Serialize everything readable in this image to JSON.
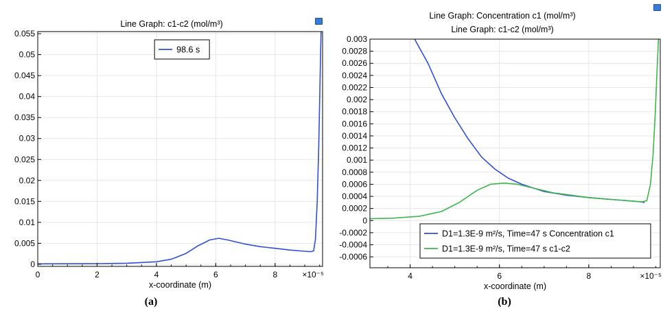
{
  "chart_data": [
    {
      "id": "a",
      "type": "line",
      "title_lines": [
        "Line Graph: c1-c2 (mol/m³)"
      ],
      "xlabel": "x-coordinate (m)",
      "x_multiplier_label": "×10⁻⁵",
      "xlim": [
        0,
        9.6
      ],
      "ylim": [
        -0.0005,
        0.0555
      ],
      "x_ticks": [
        0,
        2,
        4,
        6,
        8
      ],
      "y_ticks": [
        0,
        0.005,
        0.01,
        0.015,
        0.02,
        0.025,
        0.03,
        0.035,
        0.04,
        0.045,
        0.05,
        0.055
      ],
      "y_tick_labels": [
        "0",
        "0.005",
        "0.01",
        "0.015",
        "0.02",
        "0.025",
        "0.03",
        "0.035",
        "0.04",
        "0.045",
        "0.05",
        "0.055"
      ],
      "grid": true,
      "legend_position": "top-center",
      "series": [
        {
          "name": "98.6 s",
          "color": "#2f4fd6",
          "points": [
            [
              0,
              0.0001
            ],
            [
              2,
              0.00015
            ],
            [
              3,
              0.00025
            ],
            [
              4,
              0.0006
            ],
            [
              4.5,
              0.0012
            ],
            [
              5,
              0.0026
            ],
            [
              5.4,
              0.0044
            ],
            [
              5.8,
              0.0058
            ],
            [
              6.1,
              0.0062
            ],
            [
              6.4,
              0.0058
            ],
            [
              7,
              0.0048
            ],
            [
              7.5,
              0.0042
            ],
            [
              8,
              0.0038
            ],
            [
              8.5,
              0.0034
            ],
            [
              9,
              0.0031
            ],
            [
              9.2,
              0.003
            ],
            [
              9.3,
              0.0032
            ],
            [
              9.36,
              0.006
            ],
            [
              9.42,
              0.015
            ],
            [
              9.47,
              0.028
            ],
            [
              9.51,
              0.042
            ],
            [
              9.55,
              0.0555
            ]
          ]
        }
      ],
      "caption": "(a)"
    },
    {
      "id": "b",
      "type": "line",
      "title_lines": [
        "Line Graph: Concentration c1 (mol/m³)",
        "Line Graph: c1-c2 (mol/m³)"
      ],
      "xlabel": "x-coordinate (m)",
      "x_multiplier_label": "×10⁻⁵",
      "xlim": [
        3.1,
        9.6
      ],
      "ylim": [
        -0.00078,
        0.003
      ],
      "x_ticks": [
        4,
        6,
        8
      ],
      "y_ticks": [
        -0.0006,
        -0.0004,
        -0.0002,
        0,
        0.0002,
        0.0004,
        0.0006,
        0.0008,
        0.001,
        0.0012,
        0.0014,
        0.0016,
        0.0018,
        0.002,
        0.0022,
        0.0024,
        0.0026,
        0.0028,
        0.003
      ],
      "y_tick_labels": [
        "-0.0006",
        "-0.0004",
        "-0.0002",
        "0",
        "0.0002",
        "0.0004",
        "0.0006",
        "0.0008",
        "0.001",
        "0.0012",
        "0.0014",
        "0.0016",
        "0.0018",
        "0.002",
        "0.0022",
        "0.0024",
        "0.0026",
        "0.0028",
        "0.003"
      ],
      "grid": true,
      "legend_position": "bottom-right",
      "series": [
        {
          "name": "D1=1.3E-9 m²/s, Time=47 s Concentration c1",
          "color": "#2f4fd6",
          "points": [
            [
              4.1,
              0.003
            ],
            [
              4.4,
              0.0026
            ],
            [
              4.7,
              0.0021
            ],
            [
              5,
              0.0017
            ],
            [
              5.3,
              0.00135
            ],
            [
              5.6,
              0.00105
            ],
            [
              5.9,
              0.00085
            ],
            [
              6.2,
              0.0007
            ],
            [
              6.5,
              0.0006
            ],
            [
              7,
              0.00048
            ],
            [
              7.5,
              0.00042
            ],
            [
              8,
              0.00038
            ],
            [
              8.5,
              0.00035
            ],
            [
              9,
              0.00032
            ],
            [
              9.15,
              0.00031
            ],
            [
              9.25,
              0.0003
            ]
          ]
        },
        {
          "name": "D1=1.3E-9 m²/s, Time=47 s c1-c2",
          "color": "#3cb64a",
          "points": [
            [
              3.1,
              3e-05
            ],
            [
              3.6,
              4e-05
            ],
            [
              4.2,
              7e-05
            ],
            [
              4.7,
              0.00015
            ],
            [
              5.1,
              0.0003
            ],
            [
              5.5,
              0.0005
            ],
            [
              5.8,
              0.0006
            ],
            [
              6.1,
              0.00062
            ],
            [
              6.4,
              0.0006
            ],
            [
              6.8,
              0.00053
            ],
            [
              7.2,
              0.00046
            ],
            [
              7.6,
              0.00042
            ],
            [
              8,
              0.00038
            ],
            [
              8.5,
              0.00035
            ],
            [
              9,
              0.00032
            ],
            [
              9.2,
              0.00031
            ],
            [
              9.3,
              0.00033
            ],
            [
              9.38,
              0.0006
            ],
            [
              9.44,
              0.0011
            ],
            [
              9.49,
              0.0018
            ],
            [
              9.53,
              0.0025
            ],
            [
              9.56,
              0.003
            ]
          ]
        }
      ],
      "caption": "(b)"
    }
  ]
}
